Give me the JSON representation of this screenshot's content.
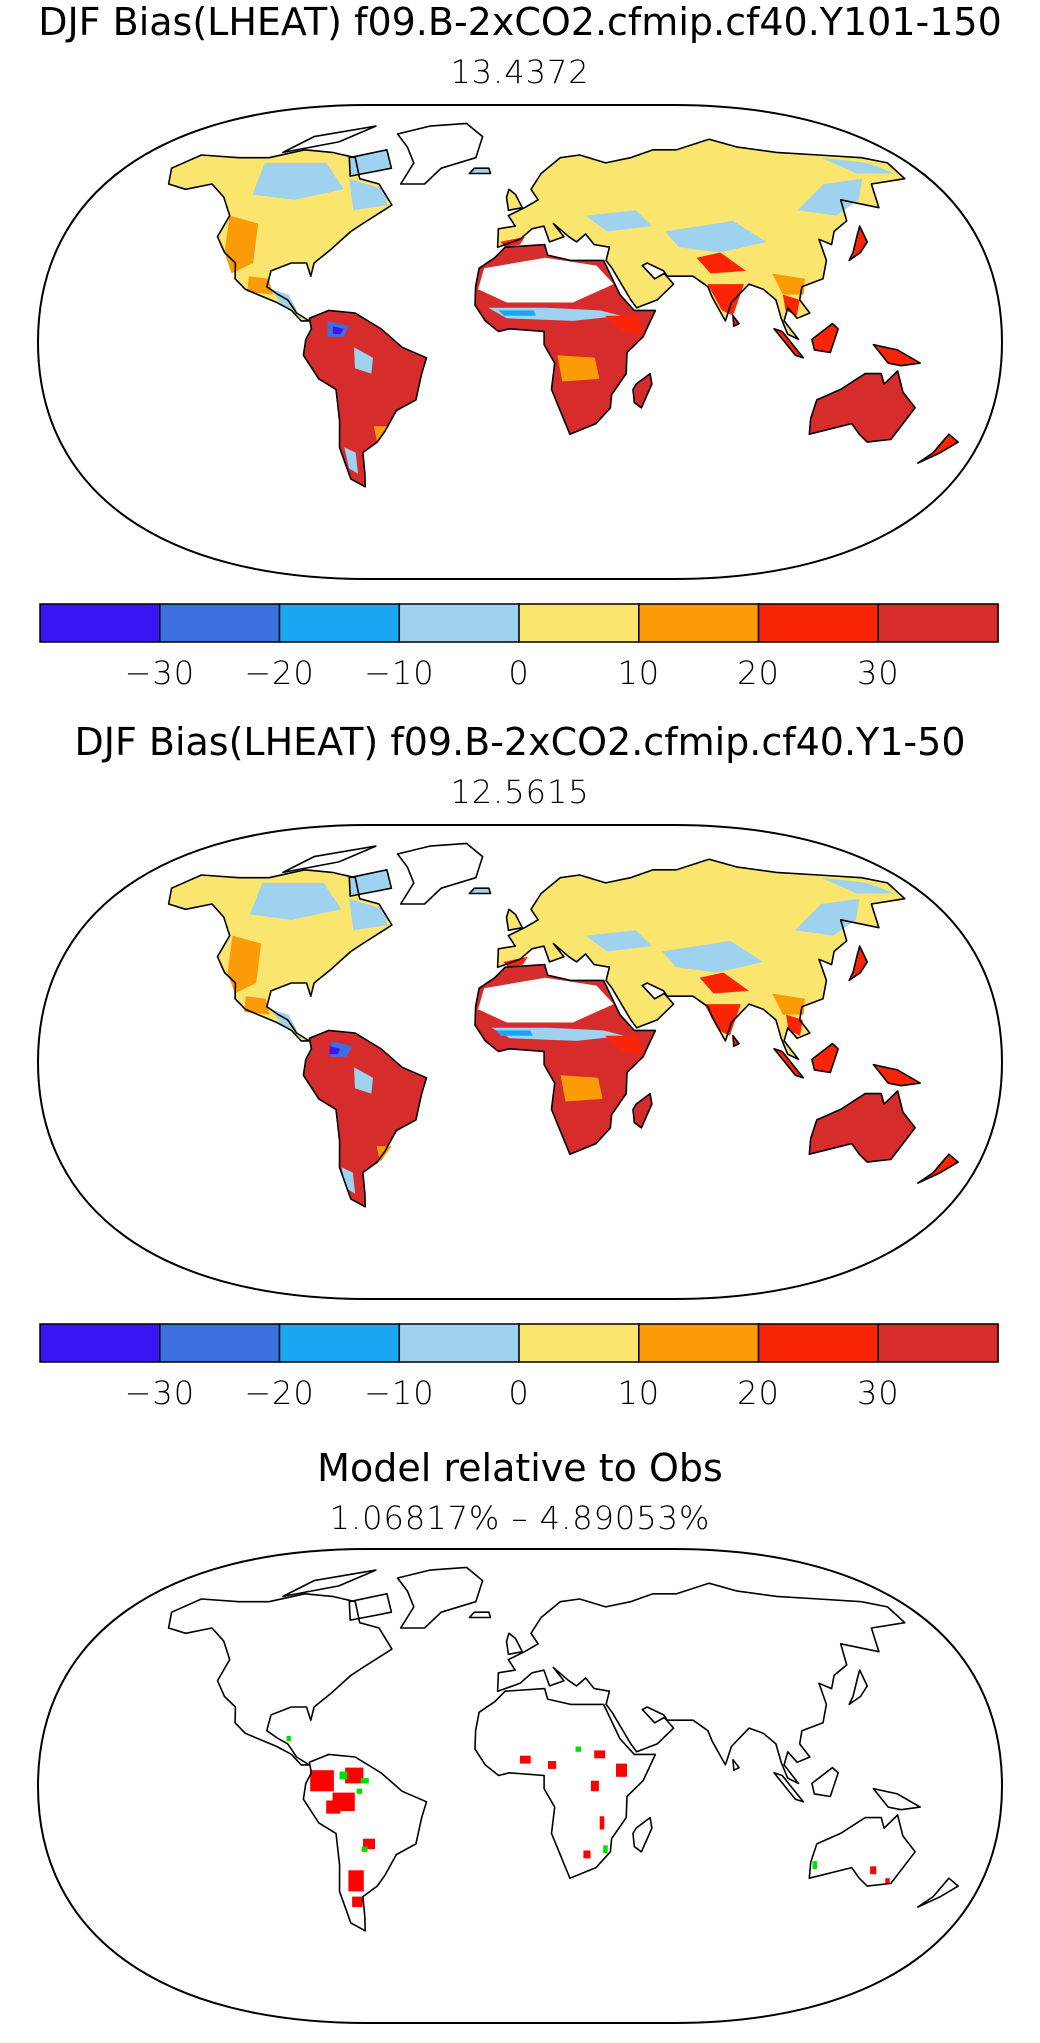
{
  "panels": [
    {
      "title": "DJF Bias(LHEAT) f09.B-2xCO2.cfmip.cf40.Y101-150",
      "subtitle": "13.4372"
    },
    {
      "title": "DJF Bias(LHEAT) f09.B-2xCO2.cfmip.cf40.Y1-50",
      "subtitle": "12.5615"
    },
    {
      "title": "Model relative to Obs",
      "subtitle": "1.06817% – 4.89053%"
    }
  ],
  "colorbar": {
    "colors": [
      "#3a16f2",
      "#3d6fe0",
      "#1aa6f2",
      "#9ed2ee",
      "#fae66e",
      "#fb9b08",
      "#fa2507",
      "#d62c2c"
    ],
    "ticks": [
      "−30",
      "−20",
      "−10",
      "0",
      "10",
      "20",
      "30"
    ]
  },
  "map_colors": {
    "outline": "#000000",
    "dark_red": "#d62c2c",
    "red": "#fa2507",
    "orange": "#fb9b08",
    "yellow": "#fae66e",
    "light_blue": "#9ed2ee",
    "blue": "#1aa6f2",
    "mid_blue": "#3d6fe0",
    "deep_blue": "#3a16f2",
    "white": "#ffffff",
    "ratio_red": "#ff0000",
    "ratio_green": "#00e000"
  },
  "chart_data": [
    {
      "type": "heatmap",
      "title": "DJF Bias(LHEAT) f09.B-2xCO2.cfmip.cf40.Y101-150",
      "subtitle": "13.4372",
      "levels": [
        -30,
        -20,
        -10,
        0,
        10,
        20,
        30
      ]
    },
    {
      "type": "heatmap",
      "title": "DJF Bias(LHEAT) f09.B-2xCO2.cfmip.cf40.Y1-50",
      "subtitle": "12.5615",
      "levels": [
        -30,
        -20,
        -10,
        0,
        10,
        20,
        30
      ]
    },
    {
      "type": "heatmap",
      "title": "Model relative to Obs",
      "subtitle": "1.06817% – 4.89053%"
    }
  ]
}
